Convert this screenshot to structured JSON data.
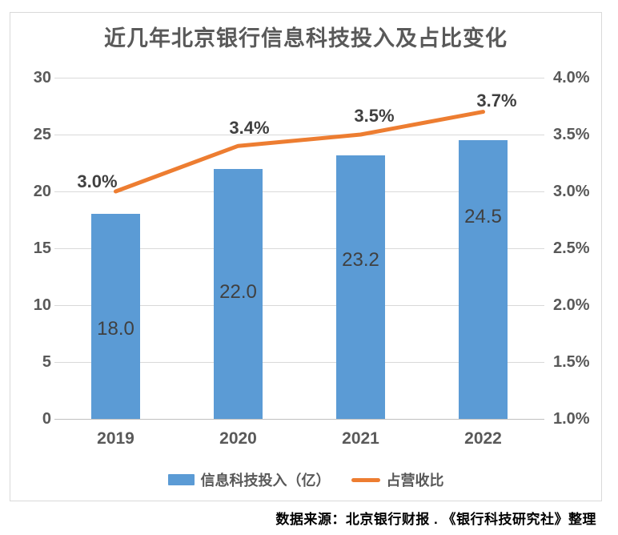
{
  "title": "近几年北京银行信息科技投入及占比变化",
  "source_note": "数据来源：北京银行财报 . 《银行科技研究社》整理",
  "colors": {
    "bar": "#5B9BD5",
    "line": "#ED7D31",
    "grid": "#D9D9D9",
    "baseline": "#BFBFBF",
    "axis_text": "#595959",
    "label_text": "#404040",
    "title_text": "#595959"
  },
  "chart_data": {
    "type": "bar",
    "subtype": "combo-bar-line",
    "title": "近几年北京银行信息科技投入及占比变化",
    "categories": [
      "2019",
      "2020",
      "2021",
      "2022"
    ],
    "series": [
      {
        "name": "信息科技投入（亿）",
        "type": "bar",
        "axis": "left",
        "values": [
          18.0,
          22.0,
          23.2,
          24.5
        ],
        "labels": [
          "18.0",
          "22.0",
          "23.2",
          "24.5"
        ],
        "color": "#5B9BD5"
      },
      {
        "name": "占营收比",
        "type": "line",
        "axis": "right",
        "values": [
          3.0,
          3.4,
          3.5,
          3.7
        ],
        "labels": [
          "3.0%",
          "3.4%",
          "3.5%",
          "3.7%"
        ],
        "color": "#ED7D31"
      }
    ],
    "left_axis": {
      "min": 0,
      "max": 30,
      "step": 5,
      "ticks": [
        "0",
        "5",
        "10",
        "15",
        "20",
        "25",
        "30"
      ]
    },
    "right_axis": {
      "min": 1.0,
      "max": 4.0,
      "step": 0.5,
      "ticks": [
        "1.0%",
        "1.5%",
        "2.0%",
        "2.5%",
        "3.0%",
        "3.5%",
        "4.0%"
      ]
    },
    "grid": true,
    "legend_position": "bottom",
    "xlabel": "",
    "ylabel_left": "",
    "ylabel_right": ""
  },
  "legend": {
    "items": [
      {
        "label": "信息科技投入（亿）",
        "swatch": "bar"
      },
      {
        "label": "占营收比",
        "swatch": "line"
      }
    ]
  }
}
